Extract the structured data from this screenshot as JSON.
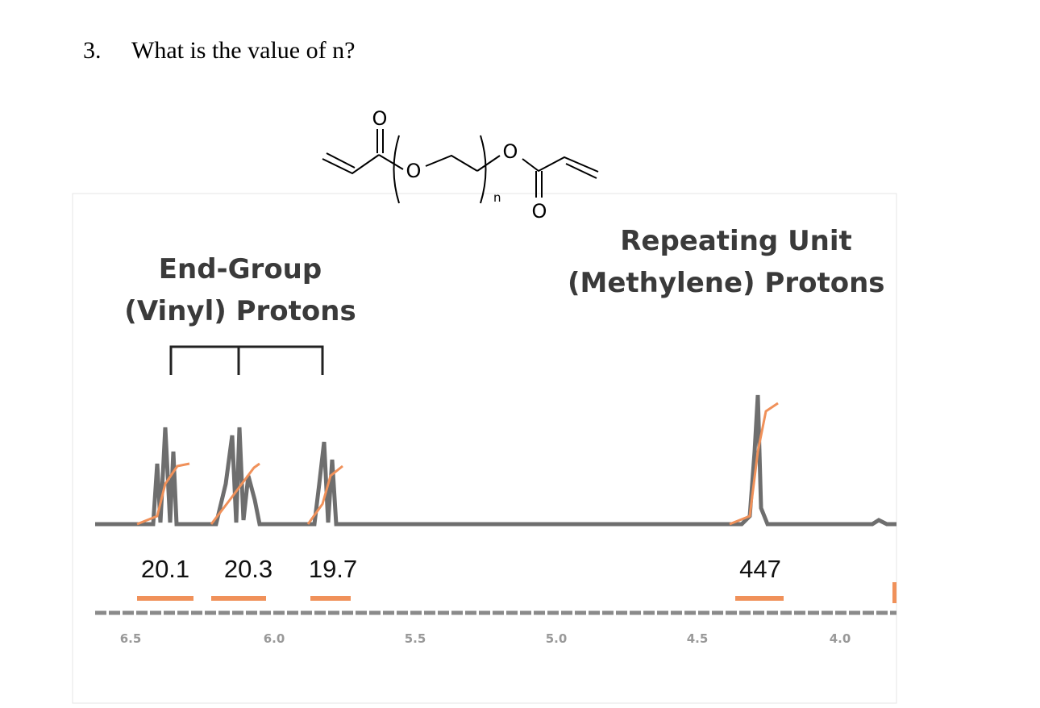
{
  "question": {
    "number": "3.",
    "text": "What is the value of n?"
  },
  "structure": {
    "atoms": [
      "O",
      "O",
      "O",
      "O"
    ],
    "subscript": "n"
  },
  "spectrum": {
    "labels": {
      "end_group": [
        "End-Group",
        "(Vinyl) Protons"
      ],
      "repeating_unit": [
        "Repeating Unit",
        "(Methylene) Protons"
      ]
    },
    "integrals": [
      "20.1",
      "20.3",
      "19.7",
      "447"
    ],
    "axis_ticks": [
      "6.5",
      "6.0",
      "5.5",
      "5.0",
      "4.5",
      "4.0"
    ]
  }
}
